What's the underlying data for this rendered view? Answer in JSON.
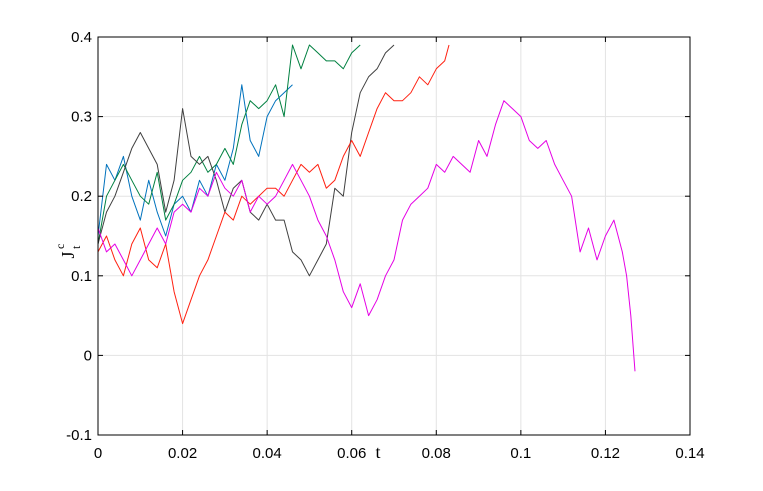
{
  "chart_data": {
    "type": "line",
    "title": "",
    "xlabel": "t",
    "ylabel": {
      "main": "J",
      "sup": "c",
      "sub": "t"
    },
    "xlim": [
      0,
      0.14
    ],
    "ylim": [
      -0.1,
      0.4
    ],
    "xticks": [
      0,
      0.02,
      0.04,
      0.06,
      0.08,
      0.1,
      0.12,
      0.14
    ],
    "yticks": [
      -0.1,
      0,
      0.1,
      0.2,
      0.3,
      0.4
    ],
    "xtick_labels": [
      "0",
      "0.02",
      "0.04",
      "0.06",
      "0.08",
      "0.1",
      "0.12",
      "0.14"
    ],
    "ytick_labels": [
      "-0.1",
      "0",
      "0.1",
      "0.2",
      "0.3",
      "0.4"
    ],
    "grid": true,
    "series": [
      {
        "color": "#0072bd",
        "x": [
          0,
          0.002,
          0.004,
          0.006,
          0.008,
          0.01,
          0.012,
          0.014,
          0.016,
          0.018,
          0.02,
          0.022,
          0.024,
          0.026,
          0.028,
          0.03,
          0.032,
          0.034,
          0.036,
          0.038,
          0.04,
          0.042,
          0.044,
          0.046
        ],
        "y": [
          0.15,
          0.24,
          0.22,
          0.25,
          0.2,
          0.17,
          0.22,
          0.18,
          0.15,
          0.19,
          0.2,
          0.18,
          0.22,
          0.2,
          0.24,
          0.22,
          0.26,
          0.34,
          0.27,
          0.25,
          0.3,
          0.32,
          0.33,
          0.34
        ]
      },
      {
        "color": "#008040",
        "x": [
          0,
          0.002,
          0.004,
          0.006,
          0.008,
          0.01,
          0.012,
          0.014,
          0.016,
          0.018,
          0.02,
          0.022,
          0.024,
          0.026,
          0.028,
          0.03,
          0.032,
          0.034,
          0.036,
          0.038,
          0.04,
          0.042,
          0.044,
          0.046,
          0.048,
          0.05,
          0.052,
          0.054,
          0.056,
          0.058,
          0.06,
          0.062
        ],
        "y": [
          0.14,
          0.2,
          0.22,
          0.24,
          0.22,
          0.2,
          0.19,
          0.23,
          0.17,
          0.19,
          0.22,
          0.23,
          0.25,
          0.23,
          0.24,
          0.26,
          0.24,
          0.29,
          0.32,
          0.31,
          0.32,
          0.34,
          0.3,
          0.39,
          0.36,
          0.39,
          0.38,
          0.37,
          0.37,
          0.36,
          0.38,
          0.39
        ]
      },
      {
        "color": "#404040",
        "x": [
          0,
          0.002,
          0.004,
          0.006,
          0.008,
          0.01,
          0.012,
          0.014,
          0.016,
          0.018,
          0.02,
          0.022,
          0.024,
          0.026,
          0.028,
          0.03,
          0.032,
          0.034,
          0.036,
          0.038,
          0.04,
          0.042,
          0.044,
          0.046,
          0.048,
          0.05,
          0.052,
          0.054,
          0.056,
          0.058,
          0.06,
          0.062,
          0.064,
          0.066,
          0.068,
          0.07
        ],
        "y": [
          0.14,
          0.18,
          0.2,
          0.23,
          0.26,
          0.28,
          0.26,
          0.24,
          0.18,
          0.22,
          0.31,
          0.25,
          0.24,
          0.25,
          0.22,
          0.18,
          0.21,
          0.22,
          0.18,
          0.17,
          0.19,
          0.17,
          0.17,
          0.13,
          0.12,
          0.1,
          0.12,
          0.14,
          0.21,
          0.2,
          0.28,
          0.33,
          0.35,
          0.36,
          0.38,
          0.39
        ]
      },
      {
        "color": "#ff2010",
        "x": [
          0,
          0.002,
          0.004,
          0.006,
          0.008,
          0.01,
          0.012,
          0.014,
          0.016,
          0.018,
          0.02,
          0.022,
          0.024,
          0.026,
          0.028,
          0.03,
          0.032,
          0.034,
          0.036,
          0.038,
          0.04,
          0.042,
          0.044,
          0.046,
          0.048,
          0.05,
          0.052,
          0.054,
          0.056,
          0.058,
          0.06,
          0.062,
          0.064,
          0.066,
          0.068,
          0.07,
          0.072,
          0.074,
          0.076,
          0.078,
          0.08,
          0.082,
          0.083
        ],
        "y": [
          0.13,
          0.15,
          0.12,
          0.1,
          0.14,
          0.16,
          0.12,
          0.11,
          0.14,
          0.08,
          0.04,
          0.07,
          0.1,
          0.12,
          0.15,
          0.18,
          0.17,
          0.2,
          0.19,
          0.2,
          0.21,
          0.21,
          0.2,
          0.22,
          0.24,
          0.23,
          0.24,
          0.21,
          0.22,
          0.25,
          0.27,
          0.25,
          0.28,
          0.31,
          0.33,
          0.32,
          0.32,
          0.33,
          0.35,
          0.34,
          0.36,
          0.37,
          0.39
        ]
      },
      {
        "color": "#e500e5",
        "x": [
          0,
          0.002,
          0.004,
          0.006,
          0.008,
          0.01,
          0.012,
          0.014,
          0.016,
          0.018,
          0.02,
          0.022,
          0.024,
          0.026,
          0.028,
          0.03,
          0.032,
          0.034,
          0.036,
          0.038,
          0.04,
          0.042,
          0.044,
          0.046,
          0.048,
          0.05,
          0.052,
          0.054,
          0.056,
          0.058,
          0.06,
          0.062,
          0.064,
          0.066,
          0.068,
          0.07,
          0.072,
          0.074,
          0.076,
          0.078,
          0.08,
          0.082,
          0.084,
          0.086,
          0.088,
          0.09,
          0.092,
          0.094,
          0.096,
          0.098,
          0.1,
          0.102,
          0.104,
          0.106,
          0.108,
          0.11,
          0.112,
          0.114,
          0.116,
          0.118,
          0.12,
          0.122,
          0.124,
          0.125,
          0.126,
          0.127
        ],
        "y": [
          0.16,
          0.13,
          0.14,
          0.12,
          0.1,
          0.12,
          0.14,
          0.16,
          0.14,
          0.18,
          0.19,
          0.18,
          0.21,
          0.2,
          0.23,
          0.21,
          0.2,
          0.22,
          0.18,
          0.2,
          0.19,
          0.2,
          0.22,
          0.24,
          0.22,
          0.2,
          0.17,
          0.15,
          0.12,
          0.08,
          0.06,
          0.09,
          0.05,
          0.07,
          0.1,
          0.12,
          0.17,
          0.19,
          0.2,
          0.21,
          0.24,
          0.23,
          0.25,
          0.24,
          0.23,
          0.27,
          0.25,
          0.29,
          0.32,
          0.31,
          0.3,
          0.27,
          0.26,
          0.27,
          0.24,
          0.22,
          0.2,
          0.13,
          0.16,
          0.12,
          0.15,
          0.17,
          0.13,
          0.1,
          0.05,
          -0.02
        ]
      }
    ]
  }
}
